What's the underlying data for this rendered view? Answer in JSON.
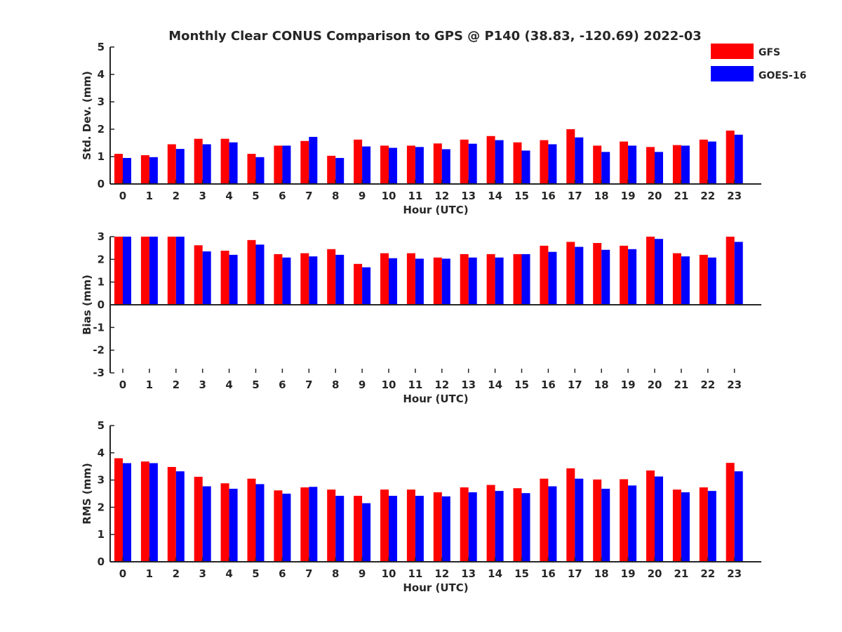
{
  "title": "Monthly Clear CONUS Comparison to GPS @ P140 (38.83, -120.69) 2022-03",
  "colors": {
    "gfs": "#ff0000",
    "goes": "#0000ff",
    "axis": "#262626"
  },
  "legend": {
    "entries": [
      "GFS",
      "GOES-16"
    ],
    "placement": "top-right"
  },
  "chart_data": [
    {
      "type": "bar",
      "name": "std-dev",
      "ylabel": "Std. Dev. (mm)",
      "xlabel": "Hour (UTC)",
      "ylim": [
        0,
        5
      ],
      "yticks": [
        0,
        1,
        2,
        3,
        4,
        5
      ],
      "categories": [
        "0",
        "1",
        "2",
        "3",
        "4",
        "5",
        "6",
        "7",
        "8",
        "9",
        "10",
        "11",
        "12",
        "13",
        "14",
        "15",
        "16",
        "17",
        "18",
        "19",
        "20",
        "21",
        "22",
        "23"
      ],
      "series": [
        {
          "name": "GFS",
          "values": [
            1.1,
            1.05,
            1.45,
            1.65,
            1.65,
            1.1,
            1.4,
            1.57,
            1.03,
            1.62,
            1.4,
            1.4,
            1.48,
            1.62,
            1.75,
            1.52,
            1.6,
            2.0,
            1.4,
            1.55,
            1.35,
            1.42,
            1.62,
            1.95
          ]
        },
        {
          "name": "GOES-16",
          "values": [
            0.95,
            0.98,
            1.28,
            1.45,
            1.52,
            0.98,
            1.4,
            1.72,
            0.95,
            1.37,
            1.32,
            1.35,
            1.27,
            1.47,
            1.6,
            1.22,
            1.45,
            1.7,
            1.17,
            1.4,
            1.17,
            1.4,
            1.55,
            1.8
          ]
        }
      ]
    },
    {
      "type": "bar",
      "name": "bias",
      "ylabel": "Bias (mm)",
      "xlabel": "Hour (UTC)",
      "ylim": [
        -3,
        3
      ],
      "yticks": [
        -3,
        -2,
        -1,
        0,
        1,
        2,
        3
      ],
      "categories": [
        "0",
        "1",
        "2",
        "3",
        "4",
        "5",
        "6",
        "7",
        "8",
        "9",
        "10",
        "11",
        "12",
        "13",
        "14",
        "15",
        "16",
        "17",
        "18",
        "19",
        "20",
        "21",
        "22",
        "23"
      ],
      "series": [
        {
          "name": "GFS",
          "values": [
            3.0,
            3.0,
            3.0,
            2.62,
            2.38,
            2.85,
            2.23,
            2.27,
            2.45,
            1.8,
            2.27,
            2.27,
            2.08,
            2.23,
            2.23,
            2.23,
            2.6,
            2.77,
            2.72,
            2.6,
            3.0,
            2.27,
            2.2,
            3.0
          ]
        },
        {
          "name": "GOES-16",
          "values": [
            3.0,
            3.0,
            3.0,
            2.35,
            2.2,
            2.65,
            2.08,
            2.13,
            2.2,
            1.65,
            2.05,
            2.03,
            2.03,
            2.08,
            2.08,
            2.23,
            2.33,
            2.55,
            2.42,
            2.45,
            2.9,
            2.13,
            2.08,
            2.77
          ]
        }
      ]
    },
    {
      "type": "bar",
      "name": "rms",
      "ylabel": "RMS (mm)",
      "xlabel": "Hour (UTC)",
      "ylim": [
        0,
        5
      ],
      "yticks": [
        0,
        1,
        2,
        3,
        4,
        5
      ],
      "categories": [
        "0",
        "1",
        "2",
        "3",
        "4",
        "5",
        "6",
        "7",
        "8",
        "9",
        "10",
        "11",
        "12",
        "13",
        "14",
        "15",
        "16",
        "17",
        "18",
        "19",
        "20",
        "21",
        "22",
        "23"
      ],
      "series": [
        {
          "name": "GFS",
          "values": [
            3.8,
            3.68,
            3.48,
            3.12,
            2.88,
            3.05,
            2.62,
            2.73,
            2.65,
            2.42,
            2.65,
            2.65,
            2.55,
            2.73,
            2.82,
            2.7,
            3.05,
            3.43,
            3.02,
            3.03,
            3.35,
            2.65,
            2.73,
            3.63
          ]
        },
        {
          "name": "GOES-16",
          "values": [
            3.62,
            3.62,
            3.32,
            2.77,
            2.68,
            2.85,
            2.5,
            2.75,
            2.42,
            2.15,
            2.42,
            2.42,
            2.4,
            2.55,
            2.6,
            2.52,
            2.77,
            3.05,
            2.68,
            2.8,
            3.13,
            2.55,
            2.6,
            3.32
          ]
        }
      ]
    }
  ]
}
